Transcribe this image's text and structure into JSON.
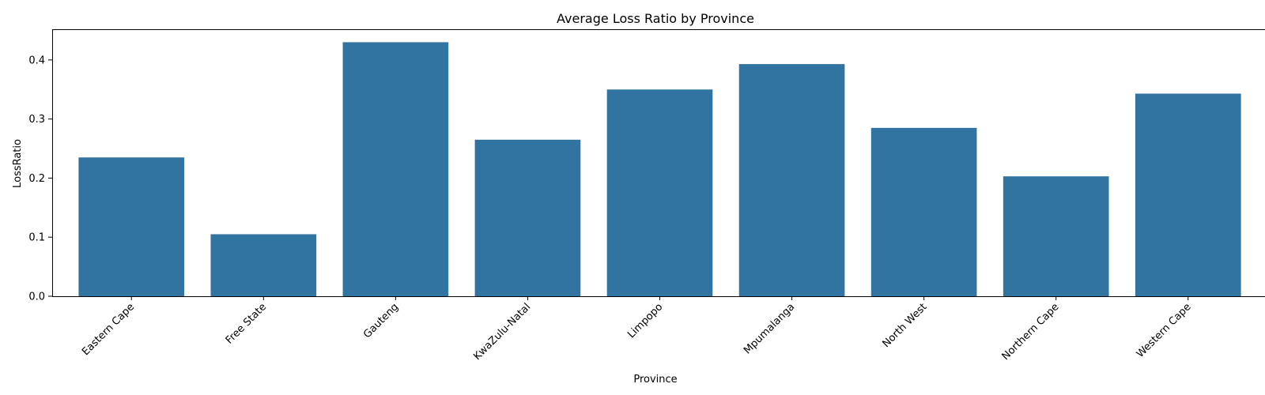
{
  "chart_data": {
    "type": "bar",
    "title": "Average Loss Ratio by Province",
    "xlabel": "Province",
    "ylabel": "LossRatio",
    "categories": [
      "Eastern Cape",
      "Free State",
      "Gauteng",
      "KwaZulu-Natal",
      "Limpopo",
      "Mpumalanga",
      "North West",
      "Northern Cape",
      "Western Cape"
    ],
    "values": [
      0.235,
      0.105,
      0.43,
      0.265,
      0.35,
      0.393,
      0.285,
      0.203,
      0.343
    ],
    "ylim": [
      0,
      0.452
    ],
    "yticks": [
      0.0,
      0.1,
      0.2,
      0.3,
      0.4
    ],
    "ytick_labels": [
      "0.0",
      "0.1",
      "0.2",
      "0.3",
      "0.4"
    ],
    "grid": false,
    "bar_color": "#3274a1"
  }
}
